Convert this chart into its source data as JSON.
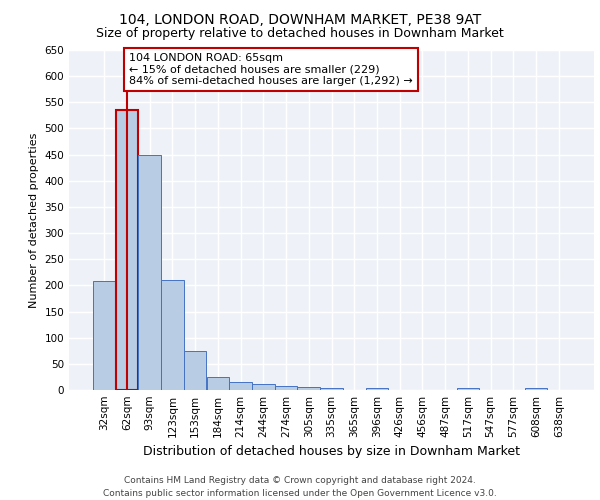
{
  "title1": "104, LONDON ROAD, DOWNHAM MARKET, PE38 9AT",
  "title2": "Size of property relative to detached houses in Downham Market",
  "xlabel": "Distribution of detached houses by size in Downham Market",
  "ylabel": "Number of detached properties",
  "categories": [
    "32sqm",
    "62sqm",
    "93sqm",
    "123sqm",
    "153sqm",
    "184sqm",
    "214sqm",
    "244sqm",
    "274sqm",
    "305sqm",
    "335sqm",
    "365sqm",
    "396sqm",
    "426sqm",
    "456sqm",
    "487sqm",
    "517sqm",
    "547sqm",
    "577sqm",
    "608sqm",
    "638sqm"
  ],
  "values": [
    208,
    535,
    450,
    210,
    75,
    25,
    15,
    12,
    8,
    5,
    4,
    0,
    4,
    0,
    0,
    0,
    4,
    0,
    0,
    4,
    0
  ],
  "bar_color": "#b8cce4",
  "bar_edge_color": "#4472c4",
  "highlight_bar_color": "#c00000",
  "highlight_bar_index": 1,
  "vline_x": 1.0,
  "ylim": [
    0,
    650
  ],
  "yticks": [
    0,
    50,
    100,
    150,
    200,
    250,
    300,
    350,
    400,
    450,
    500,
    550,
    600,
    650
  ],
  "annotation_text": "104 LONDON ROAD: 65sqm\n← 15% of detached houses are smaller (229)\n84% of semi-detached houses are larger (1,292) →",
  "annotation_box_color": "#ffffff",
  "annotation_box_edge_color": "#c00000",
  "footer1": "Contains HM Land Registry data © Crown copyright and database right 2024.",
  "footer2": "Contains public sector information licensed under the Open Government Licence v3.0.",
  "background_color": "#eef2f8",
  "grid_color": "#ffffff",
  "title1_fontsize": 10,
  "title2_fontsize": 9,
  "xlabel_fontsize": 9,
  "ylabel_fontsize": 8,
  "tick_fontsize": 7.5,
  "annotation_fontsize": 8,
  "footer_fontsize": 6.5
}
